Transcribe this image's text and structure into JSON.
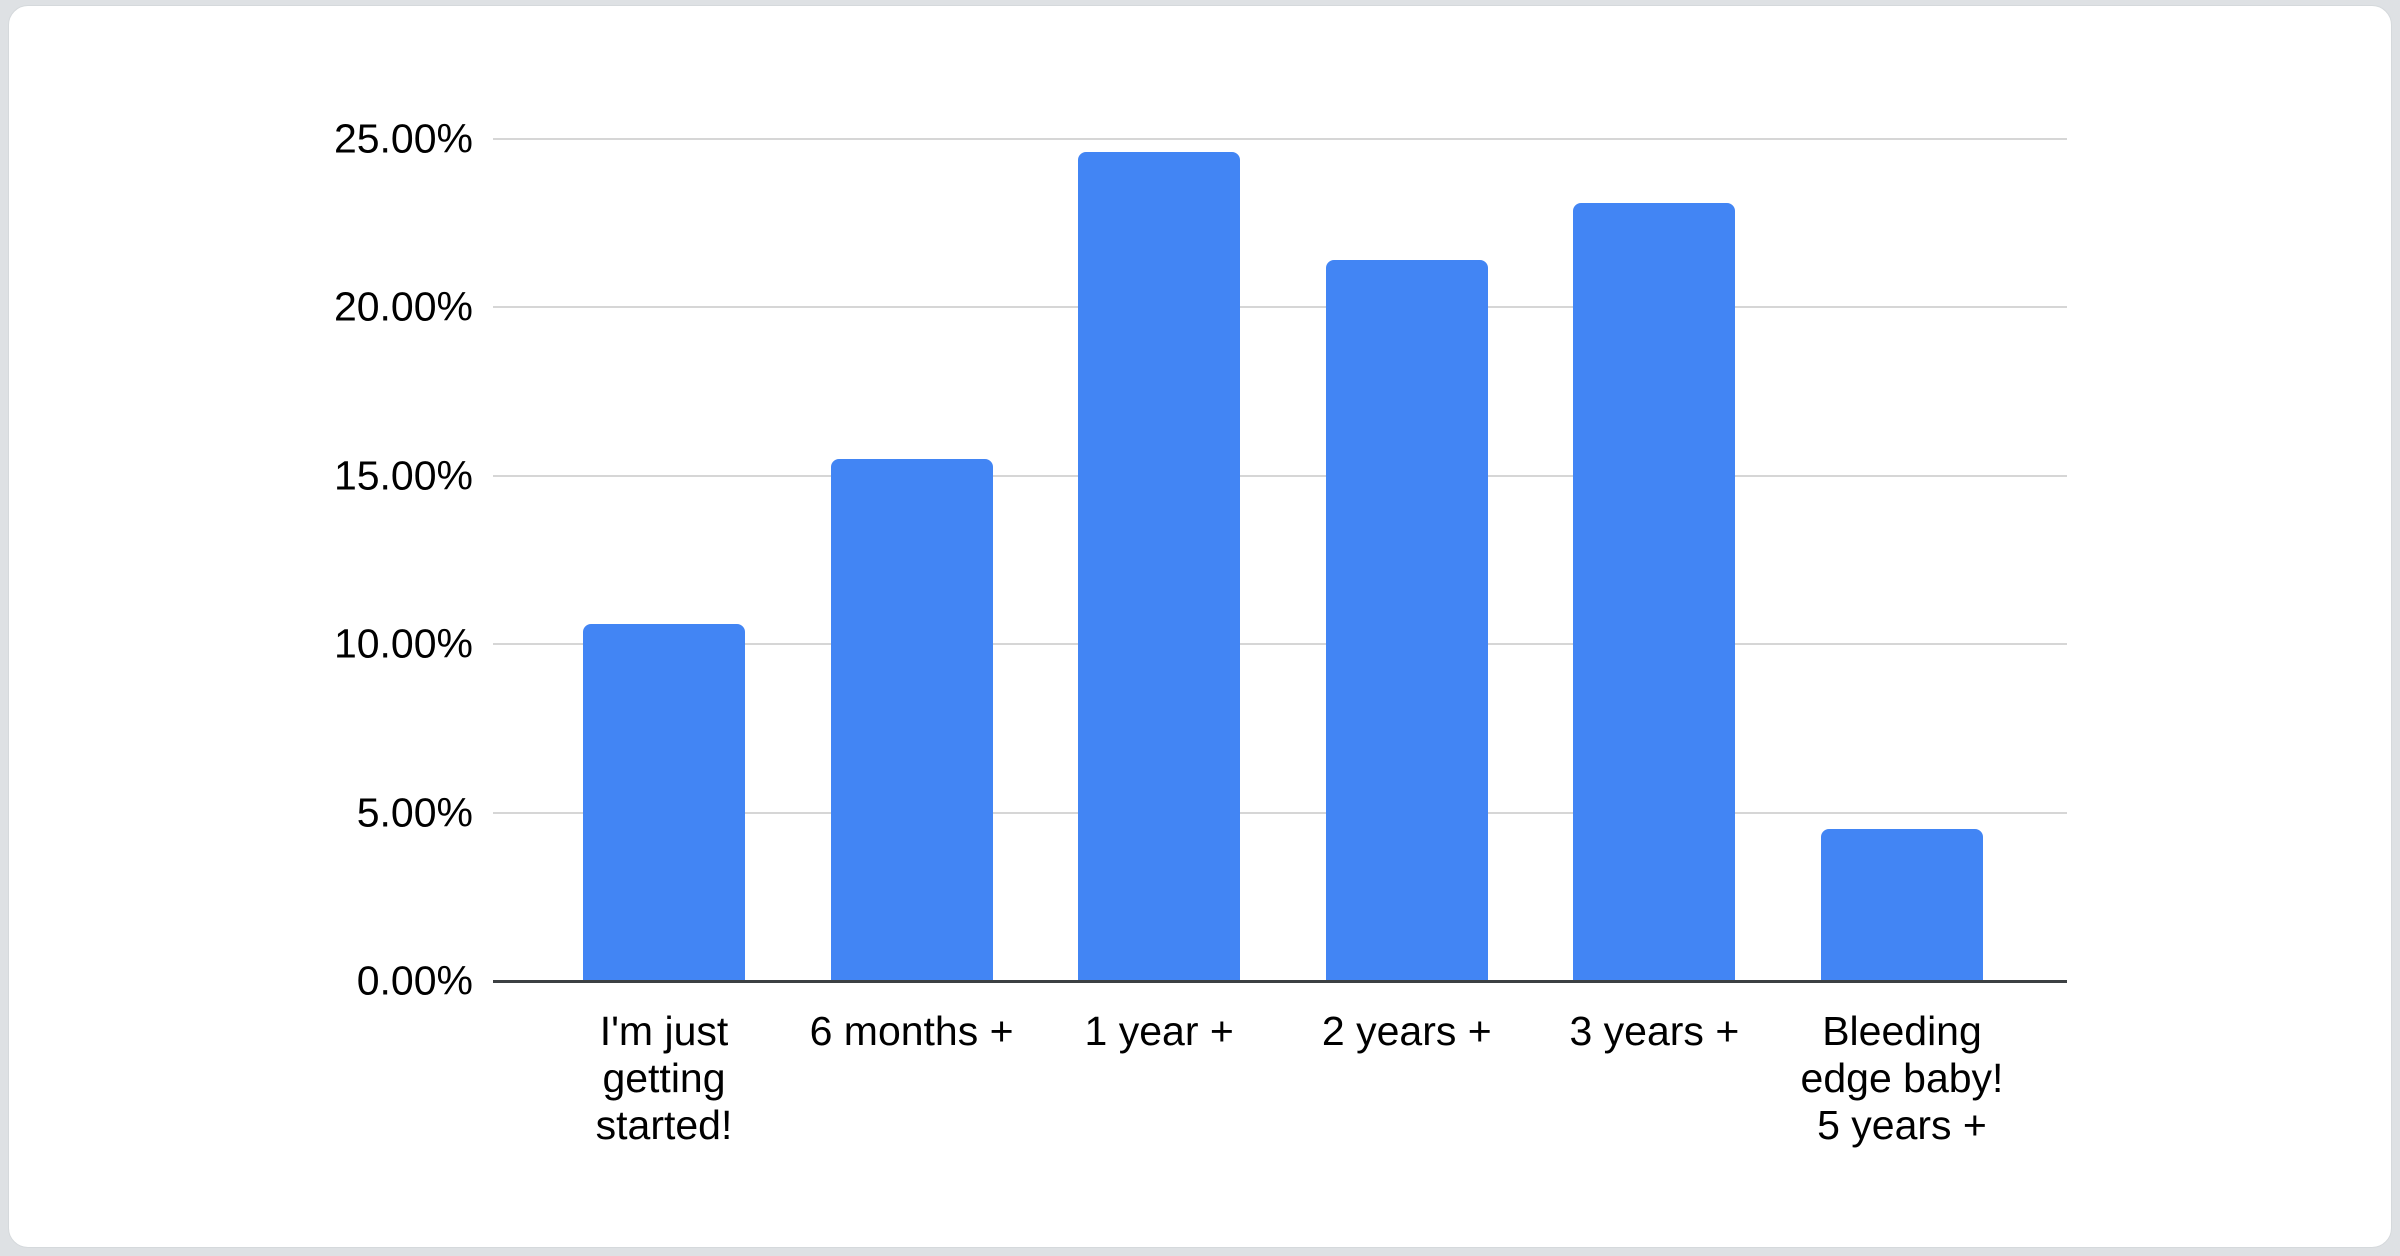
{
  "page": {
    "background_color": "#dee1e4",
    "card_color": "#ffffff"
  },
  "chart_data": {
    "type": "bar",
    "title": "",
    "xlabel": "",
    "ylabel": "",
    "categories": [
      "I'm just\ngetting\nstarted!",
      "6 months +",
      "1 year +",
      "2 years +",
      "3 years +",
      "Bleeding\nedge baby!\n5 years +"
    ],
    "values": [
      10.6,
      15.5,
      24.6,
      21.4,
      23.1,
      4.5
    ],
    "value_unit": "%",
    "y_ticks": [
      "0.00%",
      "5.00%",
      "10.00%",
      "15.00%",
      "20.00%",
      "25.00%"
    ],
    "y_tick_values": [
      0,
      5,
      10,
      15,
      20,
      25
    ],
    "ylim": [
      0,
      25
    ],
    "grid": true,
    "legend": "none",
    "bar_color": "#4285f4",
    "gridline_color": "#d6d6d6",
    "axis_line_color": "#3c4043",
    "label_color": "#000000"
  }
}
